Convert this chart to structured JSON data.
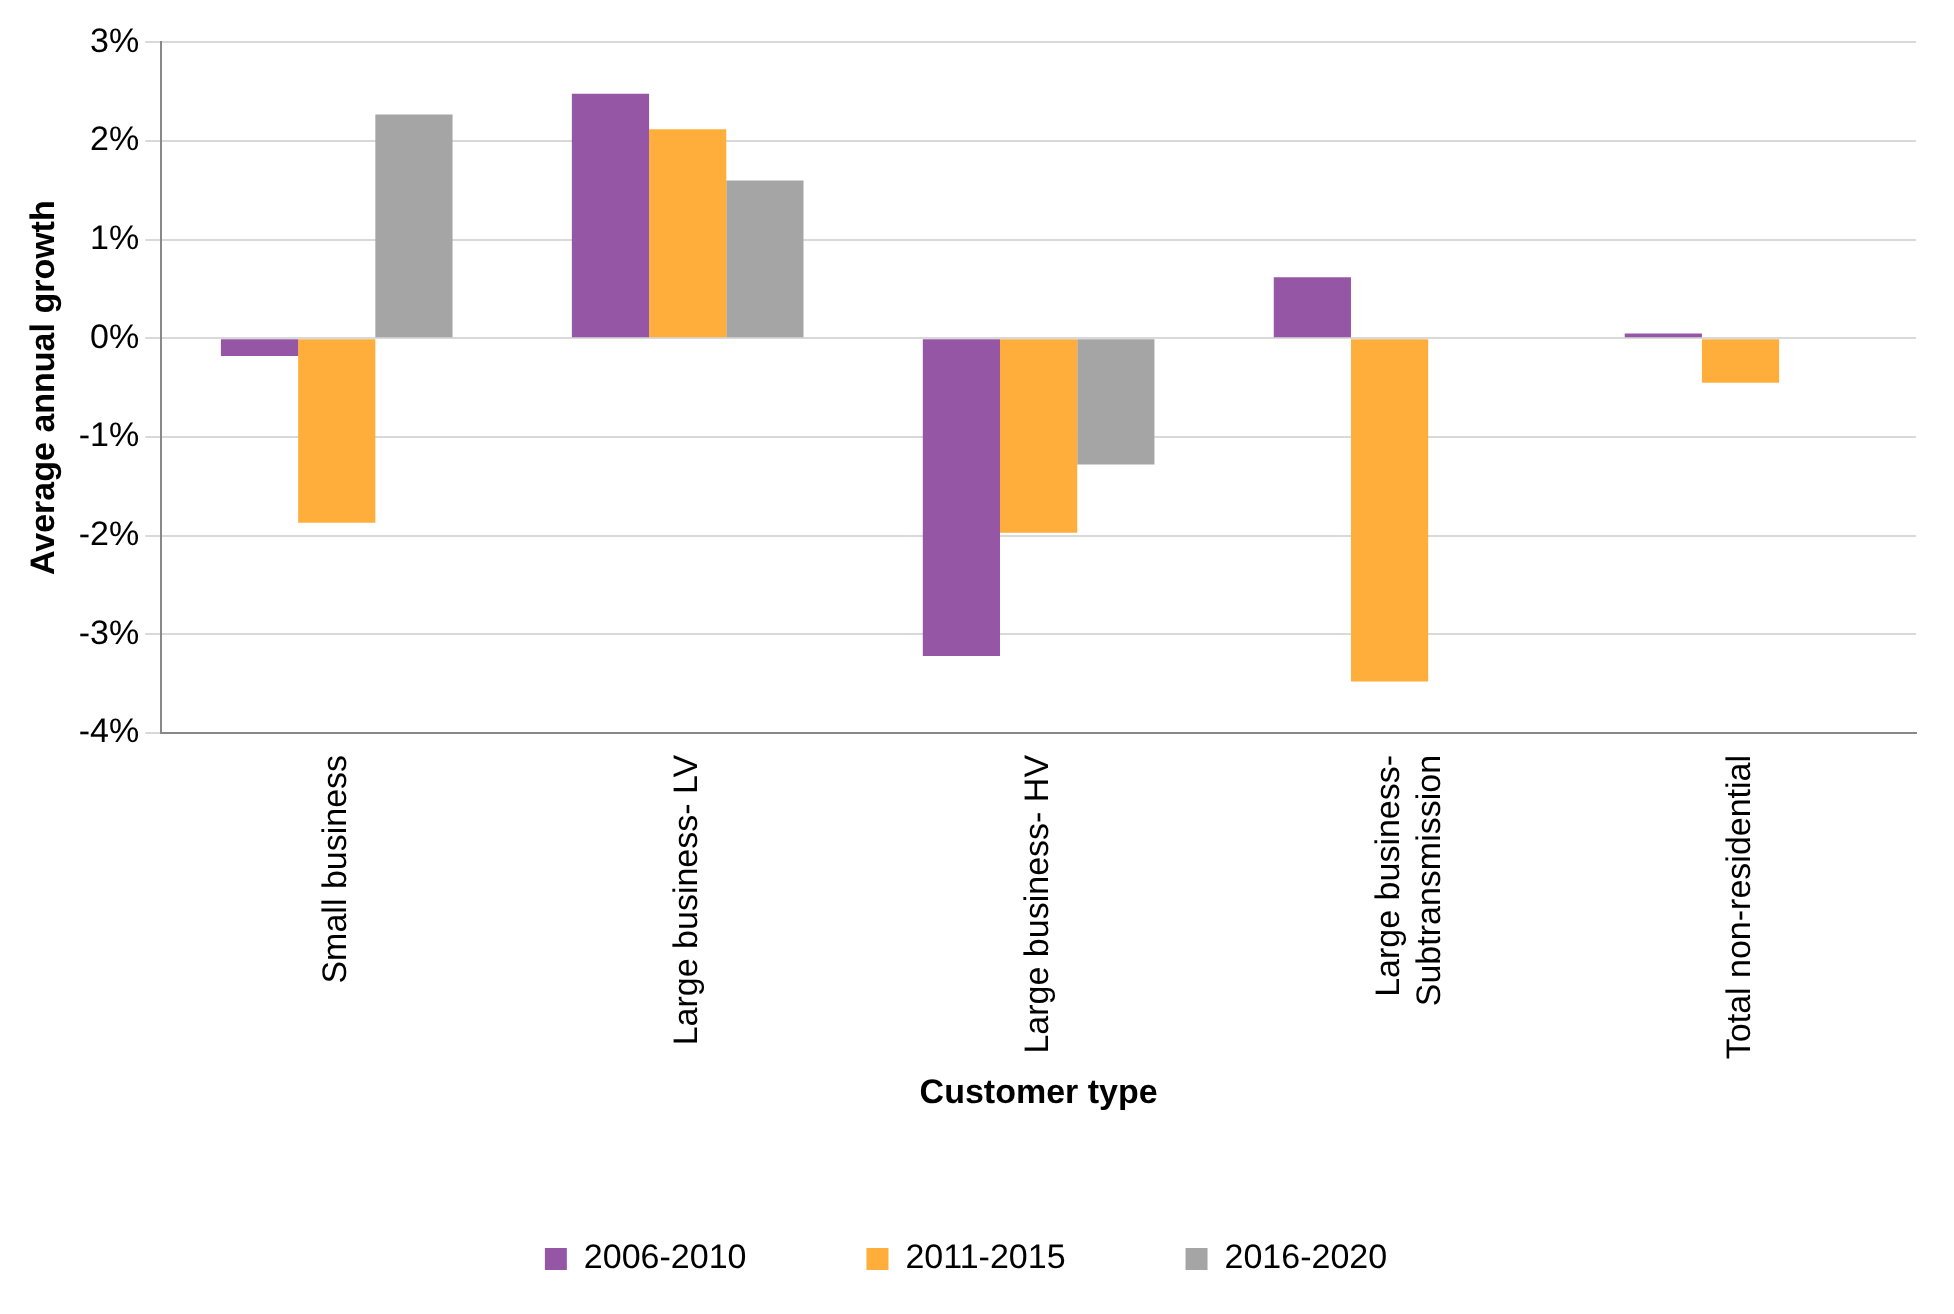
{
  "chart_data": {
    "type": "bar",
    "xlabel": "Customer type",
    "ylabel": "Average annual growth",
    "categories": [
      "Small business",
      "Large business- LV",
      "Large business- HV",
      "Large business- Subtransmission",
      "Total non-residential"
    ],
    "series": [
      {
        "name": "2006-2010",
        "color": "#9656a6",
        "values": [
          -0.18,
          2.48,
          -3.22,
          0.62,
          0.05
        ]
      },
      {
        "name": "2011-2015",
        "color": "#ffae3c",
        "values": [
          -1.87,
          2.12,
          -1.97,
          -3.48,
          -0.45
        ]
      },
      {
        "name": "2016-2020",
        "color": "#a5a5a5",
        "values": [
          2.27,
          1.6,
          -1.28,
          null,
          null
        ]
      }
    ],
    "ylim": [
      -4,
      3
    ],
    "yticks": [
      {
        "value": -4,
        "label": "-4%"
      },
      {
        "value": -3,
        "label": "-3%"
      },
      {
        "value": -2,
        "label": "-2%"
      },
      {
        "value": -1,
        "label": "-1%"
      },
      {
        "value": 0,
        "label": "0%"
      },
      {
        "value": 1,
        "label": "1%"
      },
      {
        "value": 2,
        "label": "2%"
      },
      {
        "value": 3,
        "label": "3%"
      }
    ],
    "grid": "y",
    "legend": "bottom"
  }
}
